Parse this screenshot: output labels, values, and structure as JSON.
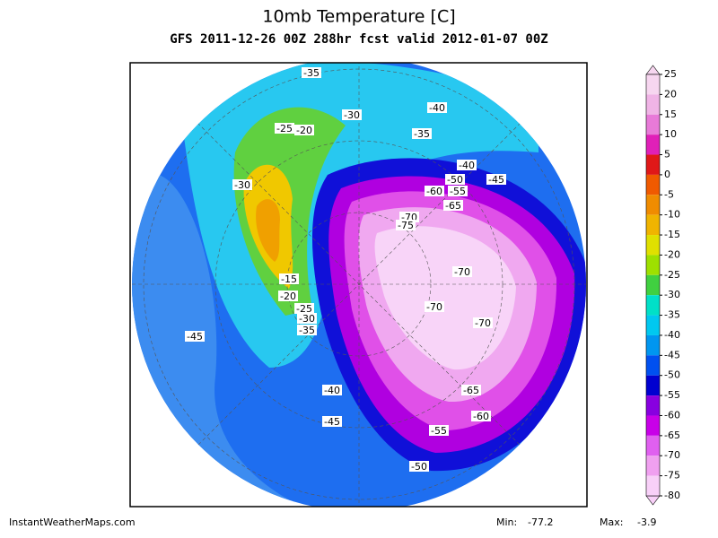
{
  "header": {
    "title": "10mb Temperature [C]",
    "subtitle": "GFS 2011-12-26 00Z 288hr fcst valid 2012-01-07 00Z"
  },
  "map": {
    "contour_labels": [
      -35,
      -30,
      -40,
      -25,
      -20,
      -35,
      -40,
      -30,
      -50,
      -45,
      -60,
      -55,
      -65,
      -70,
      -75,
      -70,
      -15,
      -20,
      -70,
      -25,
      -30,
      -70,
      -35,
      -45,
      -40,
      -65,
      -45,
      -60,
      -55,
      -50
    ]
  },
  "colorbar": {
    "ticks": [
      25,
      20,
      15,
      10,
      5,
      0,
      -5,
      -10,
      -15,
      -20,
      -25,
      -30,
      -35,
      -40,
      -45,
      -50,
      -55,
      -60,
      -65,
      -70,
      -75,
      -80
    ],
    "colors": [
      "#f7d6f0",
      "#f0b4e6",
      "#e87ad8",
      "#e020b8",
      "#e01818",
      "#f05a00",
      "#f08c00",
      "#f0b400",
      "#e0e000",
      "#9ee000",
      "#40d040",
      "#00e0c8",
      "#00c8f0",
      "#0096f0",
      "#0050f0",
      "#0000d0",
      "#8800e0",
      "#c800e8",
      "#e060f0",
      "#f0a0f0",
      "#f8d0f8"
    ]
  },
  "footer": {
    "site": "InstantWeatherMaps.com",
    "min_label": "Min:",
    "min": -77.2,
    "max_label": "Max:",
    "max": -3.9
  }
}
